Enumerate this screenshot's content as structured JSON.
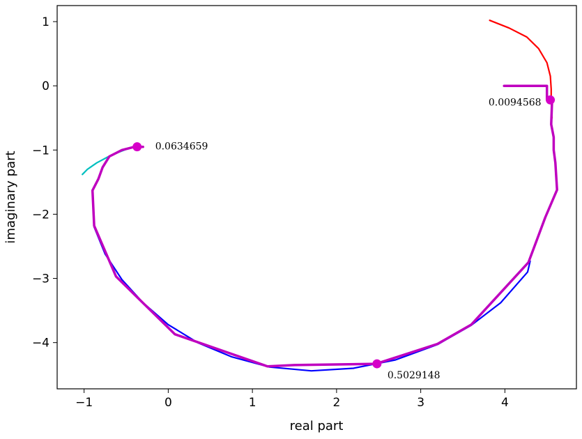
{
  "chart_data": {
    "type": "line",
    "title": "",
    "xlabel": "real part",
    "ylabel": "imaginary part",
    "xlim": [
      -1.32,
      4.85
    ],
    "ylim": [
      -4.72,
      1.25
    ],
    "xticks": [
      -1,
      0,
      1,
      2,
      3,
      4
    ],
    "yticks": [
      1,
      0,
      -1,
      -2,
      -3,
      -4
    ],
    "grid": false,
    "colors": {
      "blue": "#0000ff",
      "magenta": "#bf00bf",
      "red": "#ff0000",
      "cyan": "#00bfbf",
      "marker": "#d600c8"
    },
    "series": [
      {
        "color": "#ff0000",
        "width": 2.2,
        "points": [
          [
            3.82,
            1.02
          ],
          [
            4.05,
            0.9
          ],
          [
            4.26,
            0.76
          ],
          [
            4.4,
            0.58
          ],
          [
            4.5,
            0.36
          ],
          [
            4.54,
            0.15
          ],
          [
            4.55,
            -0.05
          ],
          [
            4.55,
            -0.22
          ],
          [
            4.56,
            -0.5
          ]
        ]
      },
      {
        "color": "#00bfbf",
        "width": 2.2,
        "points": [
          [
            -1.02,
            -1.38
          ],
          [
            -0.96,
            -1.3
          ],
          [
            -0.85,
            -1.2
          ],
          [
            -0.72,
            -1.11
          ],
          [
            -0.6,
            -1.04
          ],
          [
            -0.5,
            -0.99
          ],
          [
            -0.42,
            -0.96
          ],
          [
            -0.33,
            -0.95
          ]
        ]
      },
      {
        "color": "#0000ff",
        "width": 2.2,
        "points": [
          [
            -0.89,
            -1.93
          ],
          [
            -0.88,
            -2.2
          ],
          [
            -0.75,
            -2.62
          ],
          [
            -0.55,
            -3.02
          ],
          [
            -0.3,
            -3.38
          ],
          [
            0.0,
            -3.72
          ],
          [
            0.35,
            -4.0
          ],
          [
            0.75,
            -4.22
          ],
          [
            1.2,
            -4.38
          ],
          [
            1.7,
            -4.44
          ],
          [
            2.2,
            -4.4
          ],
          [
            2.7,
            -4.27
          ],
          [
            3.2,
            -4.03
          ],
          [
            3.6,
            -3.73
          ],
          [
            3.95,
            -3.38
          ],
          [
            4.27,
            -2.9
          ],
          [
            4.3,
            -2.73
          ]
        ]
      },
      {
        "color": "#bf00bf",
        "width": 3.5,
        "points": [
          [
            3.99,
            0.0
          ],
          [
            4.5,
            0.0
          ],
          [
            4.5,
            -0.22
          ],
          [
            4.56,
            -0.25
          ],
          [
            4.55,
            -0.6
          ],
          [
            4.58,
            -0.8
          ],
          [
            4.58,
            -1.0
          ],
          [
            4.6,
            -1.2
          ],
          [
            4.62,
            -1.62
          ],
          [
            4.48,
            -2.05
          ],
          [
            4.28,
            -2.75
          ],
          [
            3.6,
            -3.72
          ],
          [
            3.2,
            -4.02
          ],
          [
            2.47,
            -4.33
          ],
          [
            2.0,
            -4.34
          ],
          [
            1.5,
            -4.35
          ],
          [
            1.18,
            -4.37
          ],
          [
            0.08,
            -3.87
          ],
          [
            -0.62,
            -2.97
          ],
          [
            -0.88,
            -2.18
          ],
          [
            -0.9,
            -1.63
          ],
          [
            -0.83,
            -1.45
          ],
          [
            -0.78,
            -1.27
          ],
          [
            -0.7,
            -1.1
          ],
          [
            -0.55,
            -1.0
          ],
          [
            -0.4,
            -0.95
          ],
          [
            -0.3,
            -0.95
          ]
        ]
      }
    ],
    "markers": [
      {
        "x": 4.54,
        "y": -0.22,
        "label": "0.0094568",
        "label_side": "left"
      },
      {
        "x": -0.37,
        "y": -0.95,
        "label": "0.0634659",
        "label_side": "right"
      },
      {
        "x": 2.48,
        "y": -4.33,
        "label": "0.5029148",
        "label_side": "below-right"
      }
    ]
  }
}
